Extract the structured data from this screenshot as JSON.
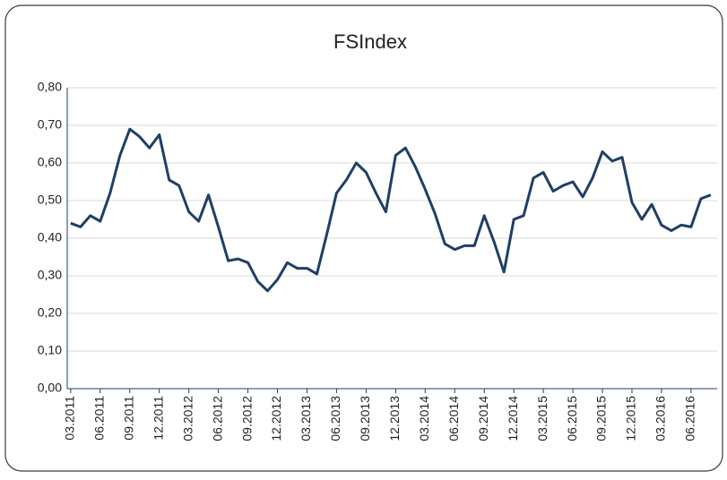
{
  "chart_data": {
    "type": "line",
    "title": "FSIndex",
    "categories": [
      "03.2011",
      null,
      null,
      "06.2011",
      null,
      null,
      "09.2011",
      null,
      null,
      "12.2011",
      null,
      null,
      "03.2012",
      null,
      null,
      "06.2012",
      null,
      null,
      "09.2012",
      null,
      null,
      "12.2012",
      null,
      null,
      "03.2013",
      null,
      null,
      "06.2013",
      null,
      null,
      "09.2013",
      null,
      null,
      "12.2013",
      null,
      null,
      "03.2014",
      null,
      null,
      "06.2014",
      null,
      null,
      "09.2014",
      null,
      null,
      "12.2014",
      null,
      null,
      "03.2015",
      null,
      null,
      "06.2015",
      null,
      null,
      "09.2015",
      null,
      null,
      "12.2015",
      null,
      null,
      "03.2016",
      null,
      null,
      "06.2016",
      null,
      null
    ],
    "values": [
      0.44,
      0.43,
      0.46,
      0.445,
      0.52,
      0.62,
      0.69,
      0.67,
      0.64,
      0.675,
      0.555,
      0.54,
      0.47,
      0.445,
      0.515,
      0.43,
      0.34,
      0.345,
      0.335,
      0.285,
      0.26,
      0.29,
      0.335,
      0.32,
      0.32,
      0.305,
      0.41,
      0.52,
      0.555,
      0.6,
      0.575,
      0.52,
      0.47,
      0.62,
      0.64,
      0.59,
      0.53,
      0.465,
      0.385,
      0.37,
      0.38,
      0.38,
      0.46,
      0.39,
      0.31,
      0.45,
      0.46,
      0.56,
      0.575,
      0.525,
      0.54,
      0.55,
      0.51,
      0.56,
      0.63,
      0.605,
      0.615,
      0.495,
      0.45,
      0.49,
      0.435,
      0.42,
      0.435,
      0.43,
      0.505,
      0.515
    ],
    "color": "#1f3f66",
    "ylim": [
      0,
      0.8
    ],
    "yticks": [
      {
        "value": 0,
        "label": "0,00"
      },
      {
        "value": 0.1,
        "label": "0,10"
      },
      {
        "value": 0.2,
        "label": "0,20"
      },
      {
        "value": 0.3,
        "label": "0,30"
      },
      {
        "value": 0.4,
        "label": "0,40"
      },
      {
        "value": 0.5,
        "label": "0,50"
      },
      {
        "value": 0.6,
        "label": "0,60"
      },
      {
        "value": 0.7,
        "label": "0,70"
      },
      {
        "value": 0.8,
        "label": "0,80"
      }
    ],
    "grid": true
  }
}
